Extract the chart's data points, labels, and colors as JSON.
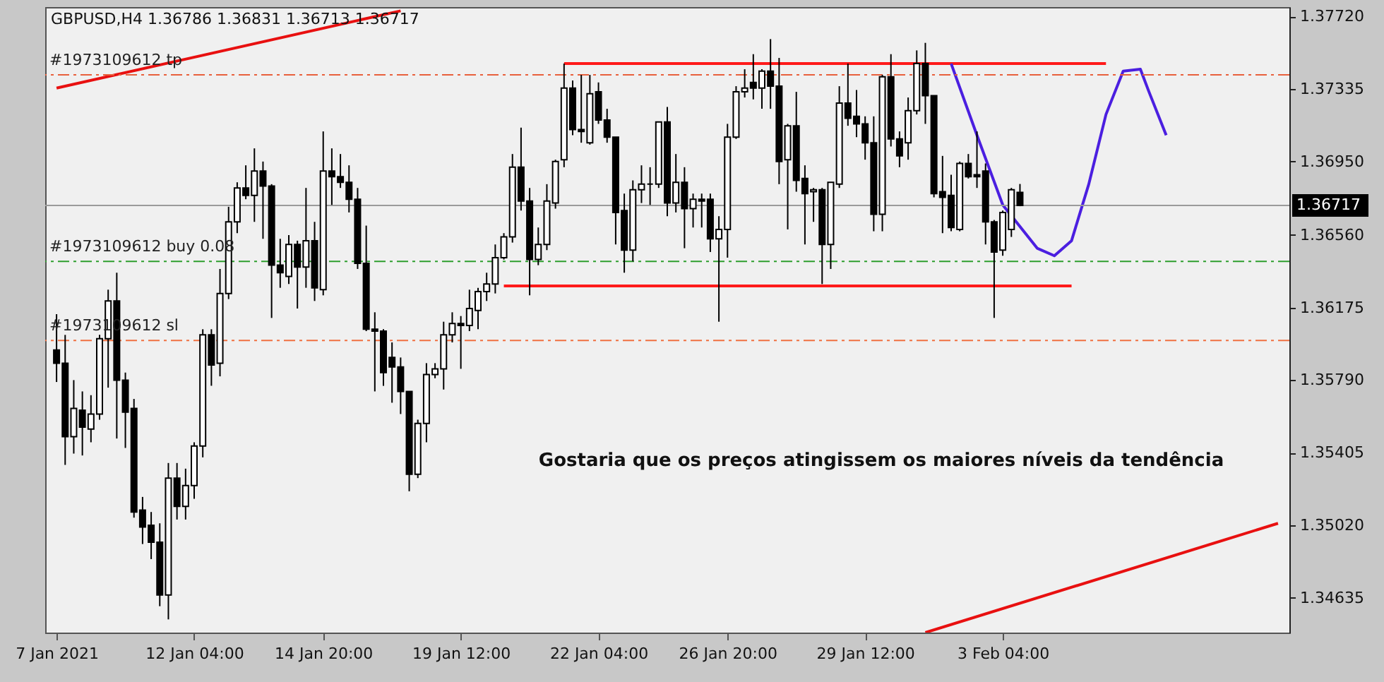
{
  "chart_data": {
    "type": "candlestick",
    "title": "GBPUSD,H4  1.36786 1.36831 1.36713 1.36717",
    "categories": [
      "7 Jan 2021",
      null,
      null,
      null,
      null,
      null,
      null,
      null,
      null,
      null,
      null,
      null,
      null,
      null,
      null,
      null,
      "12 Jan 04:00",
      null,
      null,
      null,
      null,
      null,
      null,
      null,
      null,
      null,
      null,
      null,
      null,
      null,
      null,
      "14 Jan 20:00",
      null,
      null,
      null,
      null,
      null,
      null,
      null,
      null,
      null,
      null,
      null,
      null,
      null,
      null,
      null,
      "19 Jan 12:00",
      null,
      null,
      null,
      null,
      null,
      null,
      null,
      null,
      null,
      null,
      null,
      null,
      null,
      null,
      null,
      "22 Jan 04:00",
      null,
      null,
      null,
      null,
      null,
      null,
      null,
      null,
      null,
      null,
      null,
      null,
      null,
      null,
      "26 Jan 20:00",
      null,
      null,
      null,
      null,
      null,
      null,
      null,
      null,
      null,
      null,
      null,
      null,
      null,
      null,
      null,
      "29 Jan 12:00",
      null,
      null,
      null,
      null,
      null,
      null,
      null,
      null,
      null,
      null,
      null,
      null,
      null,
      null,
      null,
      "3 Feb 04:00",
      null,
      null,
      null,
      null,
      null,
      null,
      null,
      null,
      null,
      null,
      null,
      null,
      null,
      null,
      null,
      null,
      null,
      null,
      null,
      null,
      null,
      null,
      null,
      null,
      null,
      null,
      null,
      null,
      null,
      null,
      null,
      null
    ],
    "ohlc": [
      [
        1.3595,
        1.3614,
        1.3578,
        1.3588
      ],
      [
        1.3588,
        1.3603,
        1.3534,
        1.3549
      ],
      [
        1.3549,
        1.3579,
        1.354,
        1.3564
      ],
      [
        1.3563,
        1.3573,
        1.3539,
        1.3554
      ],
      [
        1.3553,
        1.3571,
        1.3546,
        1.3561
      ],
      [
        1.3561,
        1.3603,
        1.3558,
        1.3601
      ],
      [
        1.3601,
        1.3627,
        1.3575,
        1.3621
      ],
      [
        1.3621,
        1.3636,
        1.3548,
        1.3579
      ],
      [
        1.3579,
        1.3583,
        1.3543,
        1.3562
      ],
      [
        1.3564,
        1.3569,
        1.3506,
        1.3509
      ],
      [
        1.351,
        1.3517,
        1.3492,
        1.3501
      ],
      [
        1.3502,
        1.3509,
        1.3484,
        1.3493
      ],
      [
        1.3493,
        1.3503,
        1.3459,
        1.3465
      ],
      [
        1.3465,
        1.3535,
        1.3452,
        1.3527
      ],
      [
        1.3527,
        1.3535,
        1.3505,
        1.3512
      ],
      [
        1.3512,
        1.3532,
        1.3505,
        1.3523
      ],
      [
        1.3523,
        1.3546,
        1.3516,
        1.3544
      ],
      [
        1.3544,
        1.3606,
        1.3538,
        1.3603
      ],
      [
        1.3603,
        1.3606,
        1.3576,
        1.3587
      ],
      [
        1.3588,
        1.3638,
        1.3581,
        1.3625
      ],
      [
        1.3625,
        1.3671,
        1.3622,
        1.3663
      ],
      [
        1.3663,
        1.3684,
        1.3657,
        1.3681
      ],
      [
        1.3681,
        1.3693,
        1.3675,
        1.3677
      ],
      [
        1.3677,
        1.3702,
        1.3663,
        1.369
      ],
      [
        1.369,
        1.3695,
        1.3654,
        1.3682
      ],
      [
        1.3682,
        1.3683,
        1.3612,
        1.364
      ],
      [
        1.364,
        1.3654,
        1.3628,
        1.3636
      ],
      [
        1.3634,
        1.3656,
        1.363,
        1.3651
      ],
      [
        1.3651,
        1.3653,
        1.3617,
        1.3639
      ],
      [
        1.3639,
        1.3681,
        1.3628,
        1.3653
      ],
      [
        1.3653,
        1.3663,
        1.3621,
        1.3628
      ],
      [
        1.3627,
        1.3711,
        1.3624,
        1.369
      ],
      [
        1.369,
        1.3702,
        1.3672,
        1.3687
      ],
      [
        1.3687,
        1.3699,
        1.3681,
        1.3684
      ],
      [
        1.3684,
        1.3693,
        1.3668,
        1.3675
      ],
      [
        1.3675,
        1.3681,
        1.3638,
        1.3641
      ],
      [
        1.3641,
        1.3661,
        1.3605,
        1.3606
      ],
      [
        1.3606,
        1.3615,
        1.3573,
        1.3605
      ],
      [
        1.3605,
        1.3606,
        1.3576,
        1.3583
      ],
      [
        1.3591,
        1.3599,
        1.3567,
        1.3586
      ],
      [
        1.3586,
        1.3591,
        1.3561,
        1.3573
      ],
      [
        1.3573,
        1.3573,
        1.352,
        1.3529
      ],
      [
        1.3529,
        1.3558,
        1.3527,
        1.3556
      ],
      [
        1.3556,
        1.3588,
        1.3546,
        1.3582
      ],
      [
        1.3582,
        1.3588,
        1.358,
        1.3585
      ],
      [
        1.3585,
        1.361,
        1.3574,
        1.3603
      ],
      [
        1.3603,
        1.3615,
        1.3599,
        1.3609
      ],
      [
        1.3609,
        1.3613,
        1.3585,
        1.3608
      ],
      [
        1.3608,
        1.3627,
        1.3605,
        1.3617
      ],
      [
        1.3616,
        1.3628,
        1.3606,
        1.3626
      ],
      [
        1.3626,
        1.3636,
        1.3621,
        1.363
      ],
      [
        1.363,
        1.3651,
        1.3625,
        1.3644
      ],
      [
        1.3644,
        1.3657,
        1.3643,
        1.3655
      ],
      [
        1.3655,
        1.3699,
        1.3652,
        1.3692
      ],
      [
        1.3692,
        1.3713,
        1.3669,
        1.3674
      ],
      [
        1.3674,
        1.3681,
        1.3624,
        1.3643
      ],
      [
        1.3643,
        1.366,
        1.364,
        1.3651
      ],
      [
        1.3651,
        1.3683,
        1.3648,
        1.3674
      ],
      [
        1.3673,
        1.3696,
        1.367,
        1.3695
      ],
      [
        1.3696,
        1.3747,
        1.3692,
        1.3734
      ],
      [
        1.3734,
        1.3738,
        1.3709,
        1.3712
      ],
      [
        1.3712,
        1.3741,
        1.3705,
        1.3711
      ],
      [
        1.3705,
        1.3741,
        1.3704,
        1.3731
      ],
      [
        1.3732,
        1.3737,
        1.3715,
        1.3717
      ],
      [
        1.3717,
        1.3723,
        1.3705,
        1.3708
      ],
      [
        1.3708,
        1.3708,
        1.3651,
        1.3668
      ],
      [
        1.3669,
        1.3678,
        1.3636,
        1.3648
      ],
      [
        1.3648,
        1.3685,
        1.3642,
        1.368
      ],
      [
        1.368,
        1.3693,
        1.3673,
        1.3683
      ],
      [
        1.3683,
        1.3692,
        1.3672,
        1.3683
      ],
      [
        1.3683,
        1.3716,
        1.3681,
        1.3716
      ],
      [
        1.3716,
        1.3724,
        1.3666,
        1.3673
      ],
      [
        1.3673,
        1.3699,
        1.3668,
        1.3684
      ],
      [
        1.3684,
        1.3692,
        1.3649,
        1.367
      ],
      [
        1.367,
        1.3678,
        1.366,
        1.3675
      ],
      [
        1.3675,
        1.3678,
        1.366,
        1.3674
      ],
      [
        1.3675,
        1.3678,
        1.3647,
        1.3654
      ],
      [
        1.3654,
        1.3666,
        1.361,
        1.3659
      ],
      [
        1.3659,
        1.3715,
        1.3644,
        1.3708
      ],
      [
        1.3708,
        1.3735,
        1.3707,
        1.3732
      ],
      [
        1.3732,
        1.3744,
        1.3729,
        1.3734
      ],
      [
        1.3737,
        1.3752,
        1.3728,
        1.3734
      ],
      [
        1.3734,
        1.3744,
        1.3723,
        1.3743
      ],
      [
        1.3743,
        1.376,
        1.3723,
        1.3735
      ],
      [
        1.3735,
        1.375,
        1.3683,
        1.3695
      ],
      [
        1.3696,
        1.3715,
        1.3659,
        1.3714
      ],
      [
        1.3714,
        1.3732,
        1.3679,
        1.3685
      ],
      [
        1.3686,
        1.3693,
        1.3651,
        1.3678
      ],
      [
        1.3679,
        1.3681,
        1.3663,
        1.368
      ],
      [
        1.368,
        1.3681,
        1.363,
        1.3651
      ],
      [
        1.3651,
        1.3684,
        1.3638,
        1.3684
      ],
      [
        1.3683,
        1.3735,
        1.3681,
        1.3726
      ],
      [
        1.3726,
        1.3747,
        1.3714,
        1.3718
      ],
      [
        1.3719,
        1.3733,
        1.3708,
        1.3715
      ],
      [
        1.3715,
        1.3719,
        1.3696,
        1.3705
      ],
      [
        1.3705,
        1.3719,
        1.3658,
        1.3667
      ],
      [
        1.3667,
        1.3741,
        1.3658,
        1.374
      ],
      [
        1.374,
        1.3752,
        1.3703,
        1.3707
      ],
      [
        1.3707,
        1.3711,
        1.3692,
        1.3698
      ],
      [
        1.3705,
        1.3729,
        1.3696,
        1.3722
      ],
      [
        1.3722,
        1.3754,
        1.372,
        1.3747
      ],
      [
        1.3747,
        1.3758,
        1.3715,
        1.373
      ],
      [
        1.373,
        1.373,
        1.3676,
        1.3678
      ],
      [
        1.3679,
        1.3698,
        1.3657,
        1.3676
      ],
      [
        1.3677,
        1.3688,
        1.3658,
        1.366
      ],
      [
        1.3659,
        1.3695,
        1.3658,
        1.3694
      ],
      [
        1.3694,
        1.3699,
        1.3686,
        1.3687
      ],
      [
        1.3688,
        1.3711,
        1.3681,
        1.3687
      ],
      [
        1.369,
        1.3694,
        1.3651,
        1.3663
      ],
      [
        1.3663,
        1.3664,
        1.3612,
        1.3647
      ],
      [
        1.3648,
        1.3669,
        1.3645,
        1.3668
      ],
      [
        1.3659,
        1.3681,
        1.3655,
        1.368
      ],
      [
        1.36786,
        1.36831,
        1.36713,
        1.36717
      ],
      null,
      null,
      null,
      null,
      null,
      null,
      null,
      null,
      null,
      null,
      null,
      null,
      null,
      null,
      null,
      null,
      null,
      null,
      null,
      null,
      null,
      null,
      null,
      null,
      null,
      null,
      null,
      null,
      null,
      null
    ],
    "ylim": [
      1.3445,
      1.3777
    ],
    "yticks": [
      {
        "value": 1.3772,
        "label": "1.37720"
      },
      {
        "value": 1.37335,
        "label": "1.37335"
      },
      {
        "value": 1.3695,
        "label": "1.36950"
      },
      {
        "value": 1.3656,
        "label": "1.36560"
      },
      {
        "value": 1.36175,
        "label": "1.36175"
      },
      {
        "value": 1.3579,
        "label": "1.35790"
      },
      {
        "value": 1.35405,
        "label": "1.35405"
      },
      {
        "value": 1.3502,
        "label": "1.35020"
      },
      {
        "value": 1.34635,
        "label": "1.34635"
      }
    ],
    "series": [
      {
        "type": "line",
        "color": "#e81010",
        "values": [
          1.3734,
          null,
          null,
          null,
          null,
          null,
          null,
          null,
          null,
          null,
          null,
          null,
          null,
          null,
          null,
          null,
          null,
          null,
          null,
          null,
          null,
          null,
          null,
          null,
          null,
          null,
          null,
          null,
          null,
          null,
          null,
          null,
          null,
          null,
          null,
          null,
          null,
          null,
          null,
          null,
          1.3775,
          null,
          null,
          null,
          null,
          null,
          null,
          null,
          null,
          null,
          null,
          null,
          null,
          null,
          null,
          null,
          null,
          null,
          null,
          null,
          null,
          null,
          null,
          null,
          null,
          null,
          null,
          null,
          null,
          null,
          null,
          null,
          null,
          null,
          null,
          null,
          null,
          null,
          null,
          null,
          null,
          null,
          null,
          null,
          null,
          null,
          null,
          null,
          null,
          null,
          null,
          null,
          null,
          null,
          null,
          null,
          null,
          null,
          null,
          null,
          null,
          null,
          null,
          null,
          null,
          null,
          null,
          null,
          null,
          null,
          null,
          null,
          null,
          null,
          null,
          null,
          null,
          null,
          null,
          null,
          null,
          null,
          null,
          null,
          null,
          null,
          null,
          null,
          null,
          null,
          null,
          null,
          null,
          null,
          null,
          null,
          null,
          null,
          null,
          null,
          null,
          null,
          null
        ]
      },
      {
        "type": "line",
        "color": "#e81010",
        "values": [
          null,
          null,
          null,
          null,
          null,
          null,
          null,
          null,
          null,
          null,
          null,
          null,
          null,
          null,
          null,
          null,
          null,
          null,
          null,
          null,
          null,
          null,
          null,
          null,
          null,
          null,
          null,
          null,
          null,
          null,
          null,
          null,
          null,
          null,
          null,
          null,
          null,
          null,
          null,
          null,
          null,
          null,
          null,
          null,
          null,
          null,
          null,
          null,
          null,
          null,
          null,
          null,
          null,
          null,
          null,
          null,
          null,
          null,
          null,
          null,
          null,
          null,
          null,
          null,
          null,
          null,
          null,
          null,
          null,
          null,
          null,
          null,
          null,
          null,
          null,
          null,
          null,
          null,
          null,
          null,
          null,
          null,
          null,
          null,
          null,
          null,
          null,
          null,
          null,
          null,
          null,
          null,
          null,
          null,
          null,
          null,
          null,
          null,
          null,
          null,
          null,
          1.3445,
          null,
          null,
          null,
          null,
          null,
          null,
          null,
          null,
          null,
          null,
          null,
          null,
          null,
          null,
          null,
          null,
          null,
          null,
          null,
          null,
          null,
          null,
          null,
          null,
          null,
          null,
          null,
          null,
          null,
          null,
          null,
          null,
          null,
          null,
          null,
          null,
          null,
          null,
          null,
          null,
          1.3503
        ]
      },
      {
        "type": "line",
        "color": "#ff1a1a",
        "values": [
          null,
          null,
          null,
          null,
          null,
          null,
          null,
          null,
          null,
          null,
          null,
          null,
          null,
          null,
          null,
          null,
          null,
          null,
          null,
          null,
          null,
          null,
          null,
          null,
          null,
          null,
          null,
          null,
          null,
          null,
          null,
          null,
          null,
          null,
          null,
          null,
          null,
          null,
          null,
          null,
          null,
          null,
          null,
          null,
          null,
          null,
          null,
          null,
          null,
          null,
          null,
          null,
          null,
          null,
          null,
          null,
          null,
          null,
          null,
          1.3747,
          null,
          null,
          null,
          null,
          null,
          null,
          null,
          null,
          null,
          null,
          null,
          null,
          null,
          null,
          null,
          null,
          null,
          null,
          null,
          null,
          null,
          null,
          null,
          null,
          null,
          null,
          null,
          null,
          null,
          null,
          null,
          null,
          null,
          null,
          null,
          null,
          null,
          null,
          null,
          null,
          null,
          null,
          null,
          null,
          null,
          null,
          null,
          null,
          null,
          null,
          null,
          null,
          null,
          null,
          null,
          null,
          null,
          null,
          null,
          null,
          null,
          null,
          1.3747,
          null,
          null,
          null,
          null,
          null,
          null,
          null,
          null,
          null,
          null,
          null,
          null,
          null,
          null,
          null,
          null,
          null,
          null,
          null,
          null
        ]
      },
      {
        "type": "line",
        "color": "#ff1a1a",
        "values": [
          null,
          null,
          null,
          null,
          null,
          null,
          null,
          null,
          null,
          null,
          null,
          null,
          null,
          null,
          null,
          null,
          null,
          null,
          null,
          null,
          null,
          null,
          null,
          null,
          null,
          null,
          null,
          null,
          null,
          null,
          null,
          null,
          null,
          null,
          null,
          null,
          null,
          null,
          null,
          null,
          null,
          null,
          null,
          null,
          null,
          null,
          null,
          null,
          null,
          null,
          null,
          null,
          1.3629,
          null,
          null,
          null,
          null,
          null,
          null,
          null,
          null,
          null,
          null,
          null,
          null,
          null,
          null,
          null,
          null,
          null,
          null,
          null,
          null,
          null,
          null,
          null,
          null,
          null,
          null,
          null,
          null,
          null,
          null,
          null,
          null,
          null,
          null,
          null,
          null,
          null,
          null,
          null,
          null,
          null,
          null,
          null,
          null,
          null,
          null,
          null,
          null,
          null,
          null,
          null,
          null,
          null,
          null,
          null,
          null,
          null,
          null,
          null,
          null,
          null,
          null,
          null,
          null,
          null,
          1.3629,
          null,
          null,
          null,
          null,
          null,
          null,
          null,
          null,
          null,
          null,
          null,
          null,
          null,
          null,
          null,
          null,
          null,
          null,
          null,
          null,
          null,
          null,
          null,
          null
        ]
      },
      {
        "type": "line",
        "color": "#4b1fe0",
        "values": [
          null,
          null,
          null,
          null,
          null,
          null,
          null,
          null,
          null,
          null,
          null,
          null,
          null,
          null,
          null,
          null,
          null,
          null,
          null,
          null,
          null,
          null,
          null,
          null,
          null,
          null,
          null,
          null,
          null,
          null,
          null,
          null,
          null,
          null,
          null,
          null,
          null,
          null,
          null,
          null,
          null,
          null,
          null,
          null,
          null,
          null,
          null,
          null,
          null,
          null,
          null,
          null,
          null,
          null,
          null,
          null,
          null,
          null,
          null,
          null,
          null,
          null,
          null,
          null,
          null,
          null,
          null,
          null,
          null,
          null,
          null,
          null,
          null,
          null,
          null,
          null,
          null,
          null,
          null,
          null,
          null,
          null,
          null,
          null,
          null,
          null,
          null,
          null,
          null,
          null,
          null,
          null,
          null,
          null,
          null,
          null,
          null,
          null,
          null,
          null,
          null,
          null,
          null,
          null,
          1.3747,
          null,
          null,
          1.3709,
          null,
          null,
          1.3672,
          null,
          null,
          null,
          1.3649,
          null,
          1.3645,
          null,
          1.3653,
          null,
          1.3683,
          null,
          1.372,
          null,
          1.3743,
          null,
          1.3744,
          1.3732,
          null,
          1.3709,
          null,
          null,
          null,
          null,
          null,
          null,
          null,
          null,
          null,
          null,
          null,
          null,
          null
        ]
      }
    ],
    "ref_lines": [
      {
        "axis": "y",
        "value": 1.3741,
        "label": "#1973109612 tp",
        "color": "#e8603c",
        "line_style": "dashed"
      },
      {
        "axis": "y",
        "value": 1.3642,
        "label": "#1973109612 buy 0.08",
        "color": "#2e9e2e",
        "line_style": "dashed"
      },
      {
        "axis": "y",
        "value": 1.36,
        "label": "#1973109612 sl",
        "color": "#f07040",
        "line_style": "dashed"
      },
      {
        "axis": "y",
        "value": 1.36717,
        "label": "1.36717",
        "color": "#9a9a9a",
        "line_style": "solid"
      }
    ],
    "annotations": [
      "Gostaria que os preços atingissem os maiores níveis da tendência"
    ],
    "grid": false
  }
}
